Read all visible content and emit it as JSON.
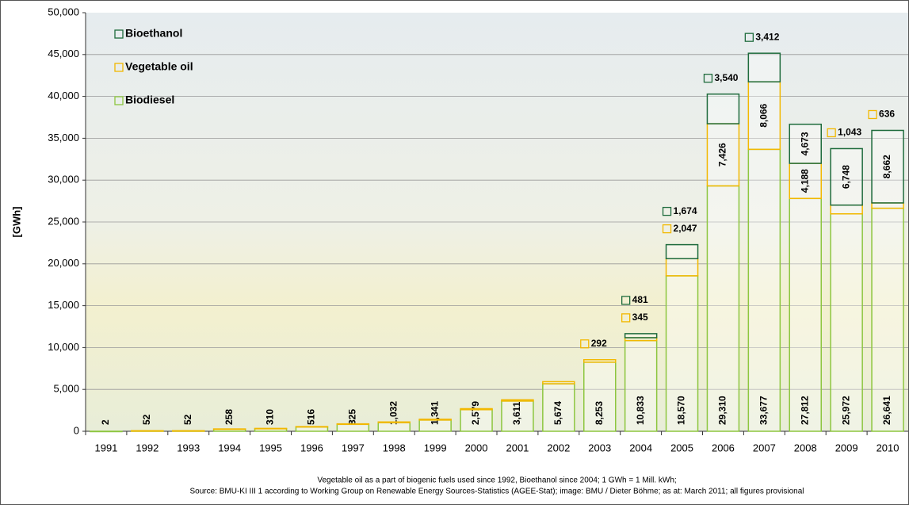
{
  "chart_data": {
    "type": "stacked_bar",
    "y_label": "[GWh]",
    "categories": [
      "1991",
      "1992",
      "1993",
      "1994",
      "1995",
      "1996",
      "1997",
      "1998",
      "1999",
      "2000",
      "2001",
      "2002",
      "2003",
      "2004",
      "2005",
      "2006",
      "2007",
      "2008",
      "2009",
      "2010"
    ],
    "series": [
      {
        "name": "Biodiesel",
        "color": "#8dc63f",
        "values": [
          2,
          52,
          52,
          258,
          310,
          516,
          825,
          1032,
          1341,
          2579,
          3611,
          5674,
          8253,
          10833,
          18570,
          29310,
          33677,
          27812,
          25972,
          26641
        ],
        "value_labels": [
          "2",
          "52",
          "52",
          "258",
          "310",
          "516",
          "825",
          "1,032",
          "1,341",
          "2,579",
          "3,611",
          "5,674",
          "8,253",
          "10,833",
          "18,570",
          "29,310",
          "33,677",
          "27,812",
          "25,972",
          "26,641"
        ]
      },
      {
        "name": "Vegetable oil",
        "color": "#f2b800",
        "values": [
          null,
          10,
          10,
          20,
          30,
          40,
          60,
          80,
          100,
          120,
          150,
          250,
          292,
          345,
          2047,
          7426,
          8066,
          4188,
          1043,
          636
        ],
        "value_labels": [
          null,
          null,
          null,
          null,
          null,
          null,
          null,
          null,
          null,
          null,
          null,
          null,
          "292",
          "345",
          "2,047",
          "7,426",
          "8,066",
          "4,188",
          "1,043",
          "636"
        ]
      },
      {
        "name": "Bioethanol",
        "color": "#1e6b3c",
        "values": [
          null,
          null,
          null,
          null,
          null,
          null,
          null,
          null,
          null,
          null,
          null,
          null,
          null,
          481,
          1674,
          3540,
          3412,
          4673,
          6748,
          8662
        ],
        "value_labels": [
          null,
          null,
          null,
          null,
          null,
          null,
          null,
          null,
          null,
          null,
          null,
          null,
          null,
          "481",
          "1,674",
          "3,540",
          "3,412",
          "4,673",
          "6,748",
          "8,662"
        ]
      }
    ],
    "ylim": [
      0,
      50000
    ],
    "yticks": [
      0,
      {
        "value": 5000,
        "label": "5,000"
      },
      {
        "value": 10000,
        "label": "10,000"
      },
      {
        "value": 15000,
        "label": "15,000"
      },
      {
        "value": 20000,
        "label": "20,000"
      },
      {
        "value": 25000,
        "label": "25,000"
      },
      {
        "value": 30000,
        "label": "30,000"
      },
      {
        "value": 35000,
        "label": "35,000"
      },
      {
        "value": 40000,
        "label": "40,000"
      },
      {
        "value": 45000,
        "label": "45,000"
      },
      {
        "value": 50000,
        "label": "50,000"
      }
    ],
    "grid": true,
    "legend": "top-left",
    "notes": [
      "Vegetable oil as a part of biogenic fuels used since 1992, Bioethanol since 2004; 1 GWh = 1 Mill. kWh;",
      "Source: BMU-KI III 1 according to Working Group on Renewable Energy Sources-Statistics (AGEE-Stat); image: BMU / Dieter Böhme; as at: March 2011; all figures provisional"
    ]
  }
}
